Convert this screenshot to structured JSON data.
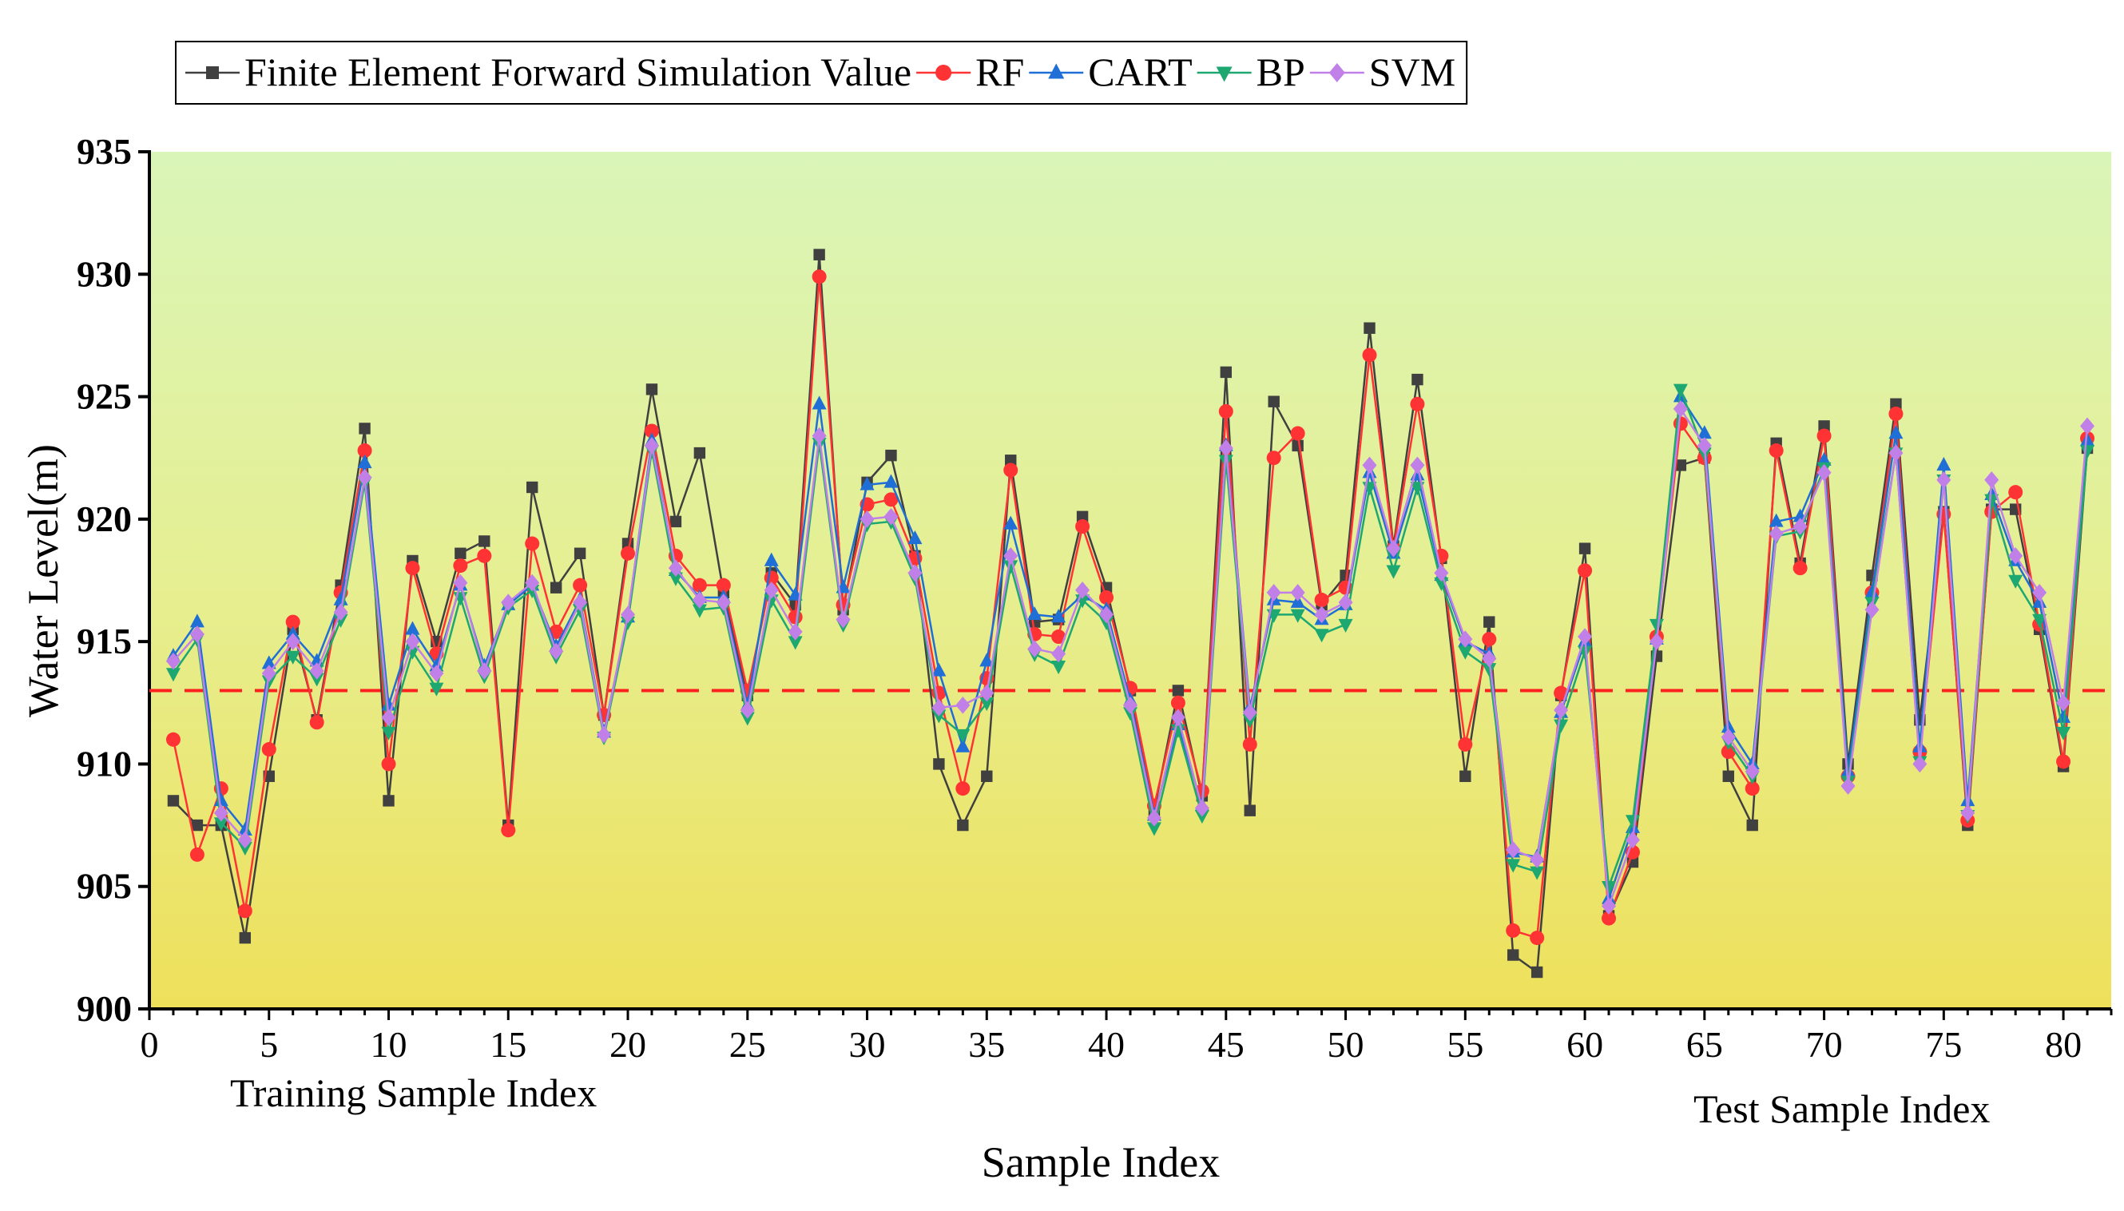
{
  "chart_data": {
    "type": "line",
    "xlabel": "Sample Index",
    "ylabel": "Water Level(m)",
    "xlim": [
      0,
      82
    ],
    "ylim": [
      900,
      935
    ],
    "xticks": [
      0,
      5,
      10,
      15,
      20,
      25,
      30,
      35,
      40,
      45,
      50,
      55,
      60,
      65,
      70,
      75,
      80
    ],
    "yticks": [
      900,
      905,
      910,
      915,
      920,
      925,
      930,
      935
    ],
    "reference_line": 913,
    "annotations": {
      "training": "Training Sample Index",
      "test": "Test Sample Index"
    },
    "x": [
      1,
      2,
      3,
      4,
      5,
      6,
      7,
      8,
      9,
      10,
      11,
      12,
      13,
      14,
      15,
      16,
      17,
      18,
      19,
      20,
      21,
      22,
      23,
      24,
      25,
      26,
      27,
      28,
      29,
      30,
      31,
      32,
      33,
      34,
      35,
      36,
      37,
      38,
      39,
      40,
      41,
      42,
      43,
      44,
      45,
      46,
      47,
      48,
      49,
      50,
      51,
      52,
      53,
      54,
      55,
      56,
      57,
      58,
      59,
      60,
      61,
      62,
      63,
      64,
      65,
      66,
      67,
      68,
      69,
      70,
      71,
      72,
      73,
      74,
      75,
      76,
      77,
      78,
      79,
      80,
      81
    ],
    "series": [
      {
        "name": "Finite Element Forward Simulation Value",
        "color": "#404040",
        "marker": "square",
        "values": [
          908.5,
          907.5,
          907.5,
          902.9,
          909.5,
          915.5,
          911.8,
          917.3,
          923.7,
          908.5,
          918.3,
          915.0,
          918.6,
          919.1,
          907.5,
          921.3,
          917.2,
          918.6,
          912.0,
          919.0,
          925.3,
          919.9,
          922.7,
          917.0,
          912.8,
          917.8,
          916.5,
          930.8,
          916.3,
          921.5,
          922.6,
          918.5,
          910.0,
          907.5,
          909.5,
          922.4,
          915.8,
          915.9,
          920.1,
          917.2,
          913.0,
          908.1,
          913.0,
          908.7,
          926.0,
          908.1,
          924.8,
          923.0,
          916.5,
          917.7,
          927.8,
          918.9,
          925.7,
          918.4,
          909.5,
          915.8,
          902.2,
          901.5,
          912.8,
          918.8,
          903.8,
          906.0,
          914.4,
          922.2,
          922.5,
          909.5,
          907.5,
          923.1,
          918.2,
          923.8,
          910.0,
          917.7,
          924.7,
          911.8,
          920.3,
          907.5,
          920.4,
          920.4,
          915.5,
          909.9,
          922.9
        ]
      },
      {
        "name": "RF",
        "color": "#ff3333",
        "marker": "circle",
        "values": [
          911.0,
          906.3,
          909.0,
          904.0,
          910.6,
          915.8,
          911.7,
          917.0,
          922.8,
          910.0,
          918.0,
          914.5,
          918.1,
          918.5,
          907.3,
          919.0,
          915.4,
          917.3,
          912.0,
          918.6,
          923.6,
          918.5,
          917.3,
          917.3,
          913.0,
          917.6,
          916.0,
          929.9,
          916.5,
          920.6,
          920.8,
          918.4,
          912.9,
          909.0,
          913.5,
          922.0,
          915.3,
          915.2,
          919.7,
          916.8,
          913.1,
          908.3,
          912.5,
          908.9,
          924.4,
          910.8,
          922.5,
          923.5,
          916.7,
          917.2,
          926.7,
          918.8,
          924.7,
          918.5,
          910.8,
          915.1,
          903.2,
          902.9,
          912.9,
          917.9,
          903.7,
          906.4,
          915.2,
          923.9,
          922.5,
          910.5,
          909.0,
          922.8,
          918.0,
          923.4,
          909.5,
          917.0,
          924.3,
          910.5,
          920.2,
          907.7,
          920.3,
          921.1,
          915.7,
          910.1,
          923.3
        ]
      },
      {
        "name": "CART",
        "color": "#1f6fd6",
        "marker": "triangle-up",
        "values": [
          914.4,
          915.8,
          908.5,
          907.3,
          914.1,
          915.3,
          914.2,
          916.7,
          922.3,
          912.4,
          915.5,
          914.0,
          917.3,
          914.0,
          916.5,
          917.3,
          914.8,
          916.7,
          911.3,
          916.0,
          923.2,
          917.9,
          916.8,
          916.8,
          912.4,
          918.3,
          916.9,
          924.7,
          917.2,
          921.4,
          921.5,
          919.2,
          913.8,
          910.7,
          914.2,
          919.8,
          916.1,
          916.0,
          916.9,
          916.3,
          912.6,
          907.9,
          911.6,
          908.3,
          923.0,
          912.3,
          916.7,
          916.6,
          915.9,
          916.5,
          921.9,
          918.6,
          921.8,
          917.7,
          915.0,
          914.5,
          906.4,
          906.2,
          912.1,
          915.0,
          904.5,
          907.4,
          915.1,
          925.0,
          923.5,
          911.5,
          910.0,
          919.9,
          920.1,
          922.4,
          909.7,
          917.0,
          923.5,
          910.7,
          922.2,
          908.5,
          921.0,
          918.3,
          916.6,
          911.9,
          923.2
        ]
      },
      {
        "name": "BP",
        "color": "#1ca870",
        "marker": "triangle-down",
        "values": [
          913.7,
          915.1,
          907.6,
          906.6,
          913.4,
          914.4,
          913.5,
          915.9,
          921.5,
          911.3,
          914.6,
          913.1,
          916.8,
          913.6,
          916.4,
          917.1,
          914.4,
          916.3,
          911.1,
          915.8,
          922.8,
          917.6,
          916.3,
          916.4,
          911.9,
          916.7,
          915.0,
          923.1,
          915.7,
          919.8,
          919.9,
          917.6,
          912.0,
          911.2,
          912.5,
          918.1,
          914.5,
          914.0,
          916.7,
          915.8,
          912.1,
          907.4,
          911.4,
          907.9,
          922.4,
          911.8,
          916.1,
          916.1,
          915.3,
          915.7,
          921.3,
          917.9,
          921.3,
          917.4,
          914.6,
          913.9,
          905.9,
          905.6,
          911.6,
          914.6,
          905.0,
          907.7,
          915.7,
          925.3,
          922.7,
          910.9,
          909.5,
          919.3,
          919.5,
          922.1,
          909.3,
          916.6,
          922.7,
          910.1,
          921.6,
          907.9,
          920.8,
          917.5,
          915.9,
          911.3,
          922.8
        ]
      },
      {
        "name": "SVM",
        "color": "#c080e8",
        "marker": "diamond",
        "values": [
          914.2,
          915.3,
          908.0,
          906.9,
          913.7,
          915.0,
          913.8,
          916.2,
          921.7,
          911.9,
          915.0,
          913.7,
          917.4,
          913.8,
          916.6,
          917.4,
          914.6,
          916.6,
          911.2,
          916.1,
          923.0,
          918.0,
          916.7,
          916.6,
          912.2,
          917.1,
          915.4,
          923.4,
          915.9,
          920.0,
          920.1,
          917.8,
          912.3,
          912.4,
          912.9,
          918.5,
          914.7,
          914.5,
          917.1,
          916.1,
          912.4,
          907.8,
          911.9,
          908.2,
          922.9,
          912.1,
          917.0,
          917.0,
          916.1,
          916.6,
          922.2,
          918.8,
          922.2,
          917.8,
          915.1,
          914.3,
          906.5,
          906.1,
          912.2,
          915.2,
          904.2,
          906.9,
          915.0,
          924.5,
          923.0,
          911.1,
          909.7,
          919.4,
          919.7,
          921.9,
          909.1,
          916.3,
          922.7,
          910.0,
          921.6,
          908.0,
          921.6,
          918.5,
          917.0,
          912.5,
          923.8
        ]
      }
    ]
  }
}
